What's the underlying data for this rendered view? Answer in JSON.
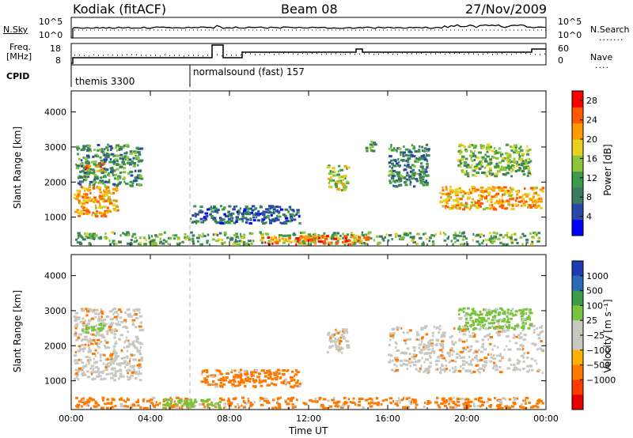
{
  "header": {
    "station": "Kodiak (fitACF)",
    "beam": "Beam 08",
    "date": "27/Nov/2009"
  },
  "top_panels": {
    "nsky_label": "N.Sky",
    "nsky_ticks": [
      "10^5",
      "10^0"
    ],
    "nsearch_label": "N.Search",
    "nsearch_ticks": [
      "10^5",
      "10^0"
    ],
    "freq_label_line1": "Freq.",
    "freq_label_line2": "[MHz]",
    "freq_ticks": [
      "18",
      "8"
    ],
    "nave_label": "Nave",
    "nave_ticks": [
      "60",
      "0"
    ],
    "cpid_label": "CPID",
    "cpid_segments": [
      {
        "label": "themis 3300",
        "start_hour": 0
      },
      {
        "label": "normalsound (fast) 157",
        "start_hour": 6
      }
    ]
  },
  "colors": {
    "power_scale": [
      "#0000ff",
      "#2848a8",
      "#3a7a60",
      "#3c9a48",
      "#8cc43c",
      "#e8d020",
      "#ff9a00",
      "#ff5a00",
      "#ff0000"
    ],
    "velocity_scale": [
      "#1e3cb4",
      "#2a6ab8",
      "#3c9a48",
      "#78c43c",
      "#c8c8c0",
      "#c8c8c0",
      "#ffb000",
      "#ff7800",
      "#ff3c00",
      "#e60000"
    ],
    "trace": "#000000",
    "grid_dash": "#bbbbbb"
  },
  "chart_data": [
    {
      "type": "heatmap",
      "title": "",
      "xlabel": "",
      "ylabel": "Slant Range [km]",
      "x_ticks": [
        "00:00",
        "04:00",
        "08:00",
        "12:00",
        "16:00",
        "20:00",
        "00:00"
      ],
      "xlim_hours": [
        0,
        24
      ],
      "y_ticks": [
        1000,
        2000,
        3000,
        4000
      ],
      "ylim": [
        180,
        4600
      ],
      "colorbar_label": "Power [dB]",
      "colorbar_ticks": [
        28,
        24,
        20,
        16,
        12,
        8,
        4
      ],
      "colorbar_range": [
        0,
        30
      ],
      "regions": [
        {
          "t0": 0.1,
          "t1": 2.3,
          "r0": 1050,
          "r1": 1900,
          "level": 22
        },
        {
          "t0": 0.5,
          "t1": 1.6,
          "r0": 2300,
          "r1": 2600,
          "level": 24
        },
        {
          "t0": 0.2,
          "t1": 3.5,
          "r0": 1900,
          "r1": 3100,
          "level": 10
        },
        {
          "t0": 12.9,
          "t1": 14.0,
          "r0": 1800,
          "r1": 2500,
          "level": 16
        },
        {
          "t0": 14.8,
          "t1": 15.3,
          "r0": 2900,
          "r1": 3200,
          "level": 12
        },
        {
          "t0": 16.0,
          "t1": 18.0,
          "r0": 1900,
          "r1": 3100,
          "level": 8
        },
        {
          "t0": 18.6,
          "t1": 23.8,
          "r0": 1250,
          "r1": 1900,
          "level": 22
        },
        {
          "t0": 19.5,
          "t1": 23.2,
          "r0": 2200,
          "r1": 3100,
          "level": 14
        },
        {
          "t0": 0.2,
          "t1": 23.8,
          "r0": 250,
          "r1": 600,
          "level": 12
        },
        {
          "t0": 9.5,
          "t1": 15.0,
          "r0": 250,
          "r1": 500,
          "level": 24
        },
        {
          "t0": 6.0,
          "t1": 11.5,
          "r0": 850,
          "r1": 1350,
          "level": 6
        }
      ]
    },
    {
      "type": "heatmap",
      "title": "",
      "xlabel": "Time UT",
      "ylabel": "Slant Range [km]",
      "x_ticks": [
        "00:00",
        "04:00",
        "08:00",
        "12:00",
        "16:00",
        "20:00",
        "00:00"
      ],
      "xlim_hours": [
        0,
        24
      ],
      "y_ticks": [
        1000,
        2000,
        3000,
        4000
      ],
      "ylim": [
        180,
        4600
      ],
      "colorbar_label": "Velocity [m s⁻¹]",
      "colorbar_ticks": [
        "1000",
        "500",
        "100",
        "25",
        "−25",
        "−100",
        "−500",
        "−1000"
      ],
      "regions": [
        {
          "t0": 0.1,
          "t1": 3.5,
          "r0": 1050,
          "r1": 3100,
          "level": 25
        },
        {
          "t0": 0.5,
          "t1": 1.6,
          "r0": 2400,
          "r1": 2700,
          "level": 100
        },
        {
          "t0": 12.9,
          "t1": 14.0,
          "r0": 1800,
          "r1": 2500,
          "level": 25
        },
        {
          "t0": 16.0,
          "t1": 23.8,
          "r0": 1250,
          "r1": 2600,
          "level": 25
        },
        {
          "t0": 19.5,
          "t1": 23.2,
          "r0": 2500,
          "r1": 3100,
          "level": 100
        },
        {
          "t0": 0.2,
          "t1": 23.8,
          "r0": 250,
          "r1": 550,
          "level": -100
        },
        {
          "t0": 4.5,
          "t1": 7.5,
          "r0": 250,
          "r1": 500,
          "level": 100
        },
        {
          "t0": 6.5,
          "t1": 11.5,
          "r0": 850,
          "r1": 1350,
          "level": -100
        }
      ]
    }
  ]
}
